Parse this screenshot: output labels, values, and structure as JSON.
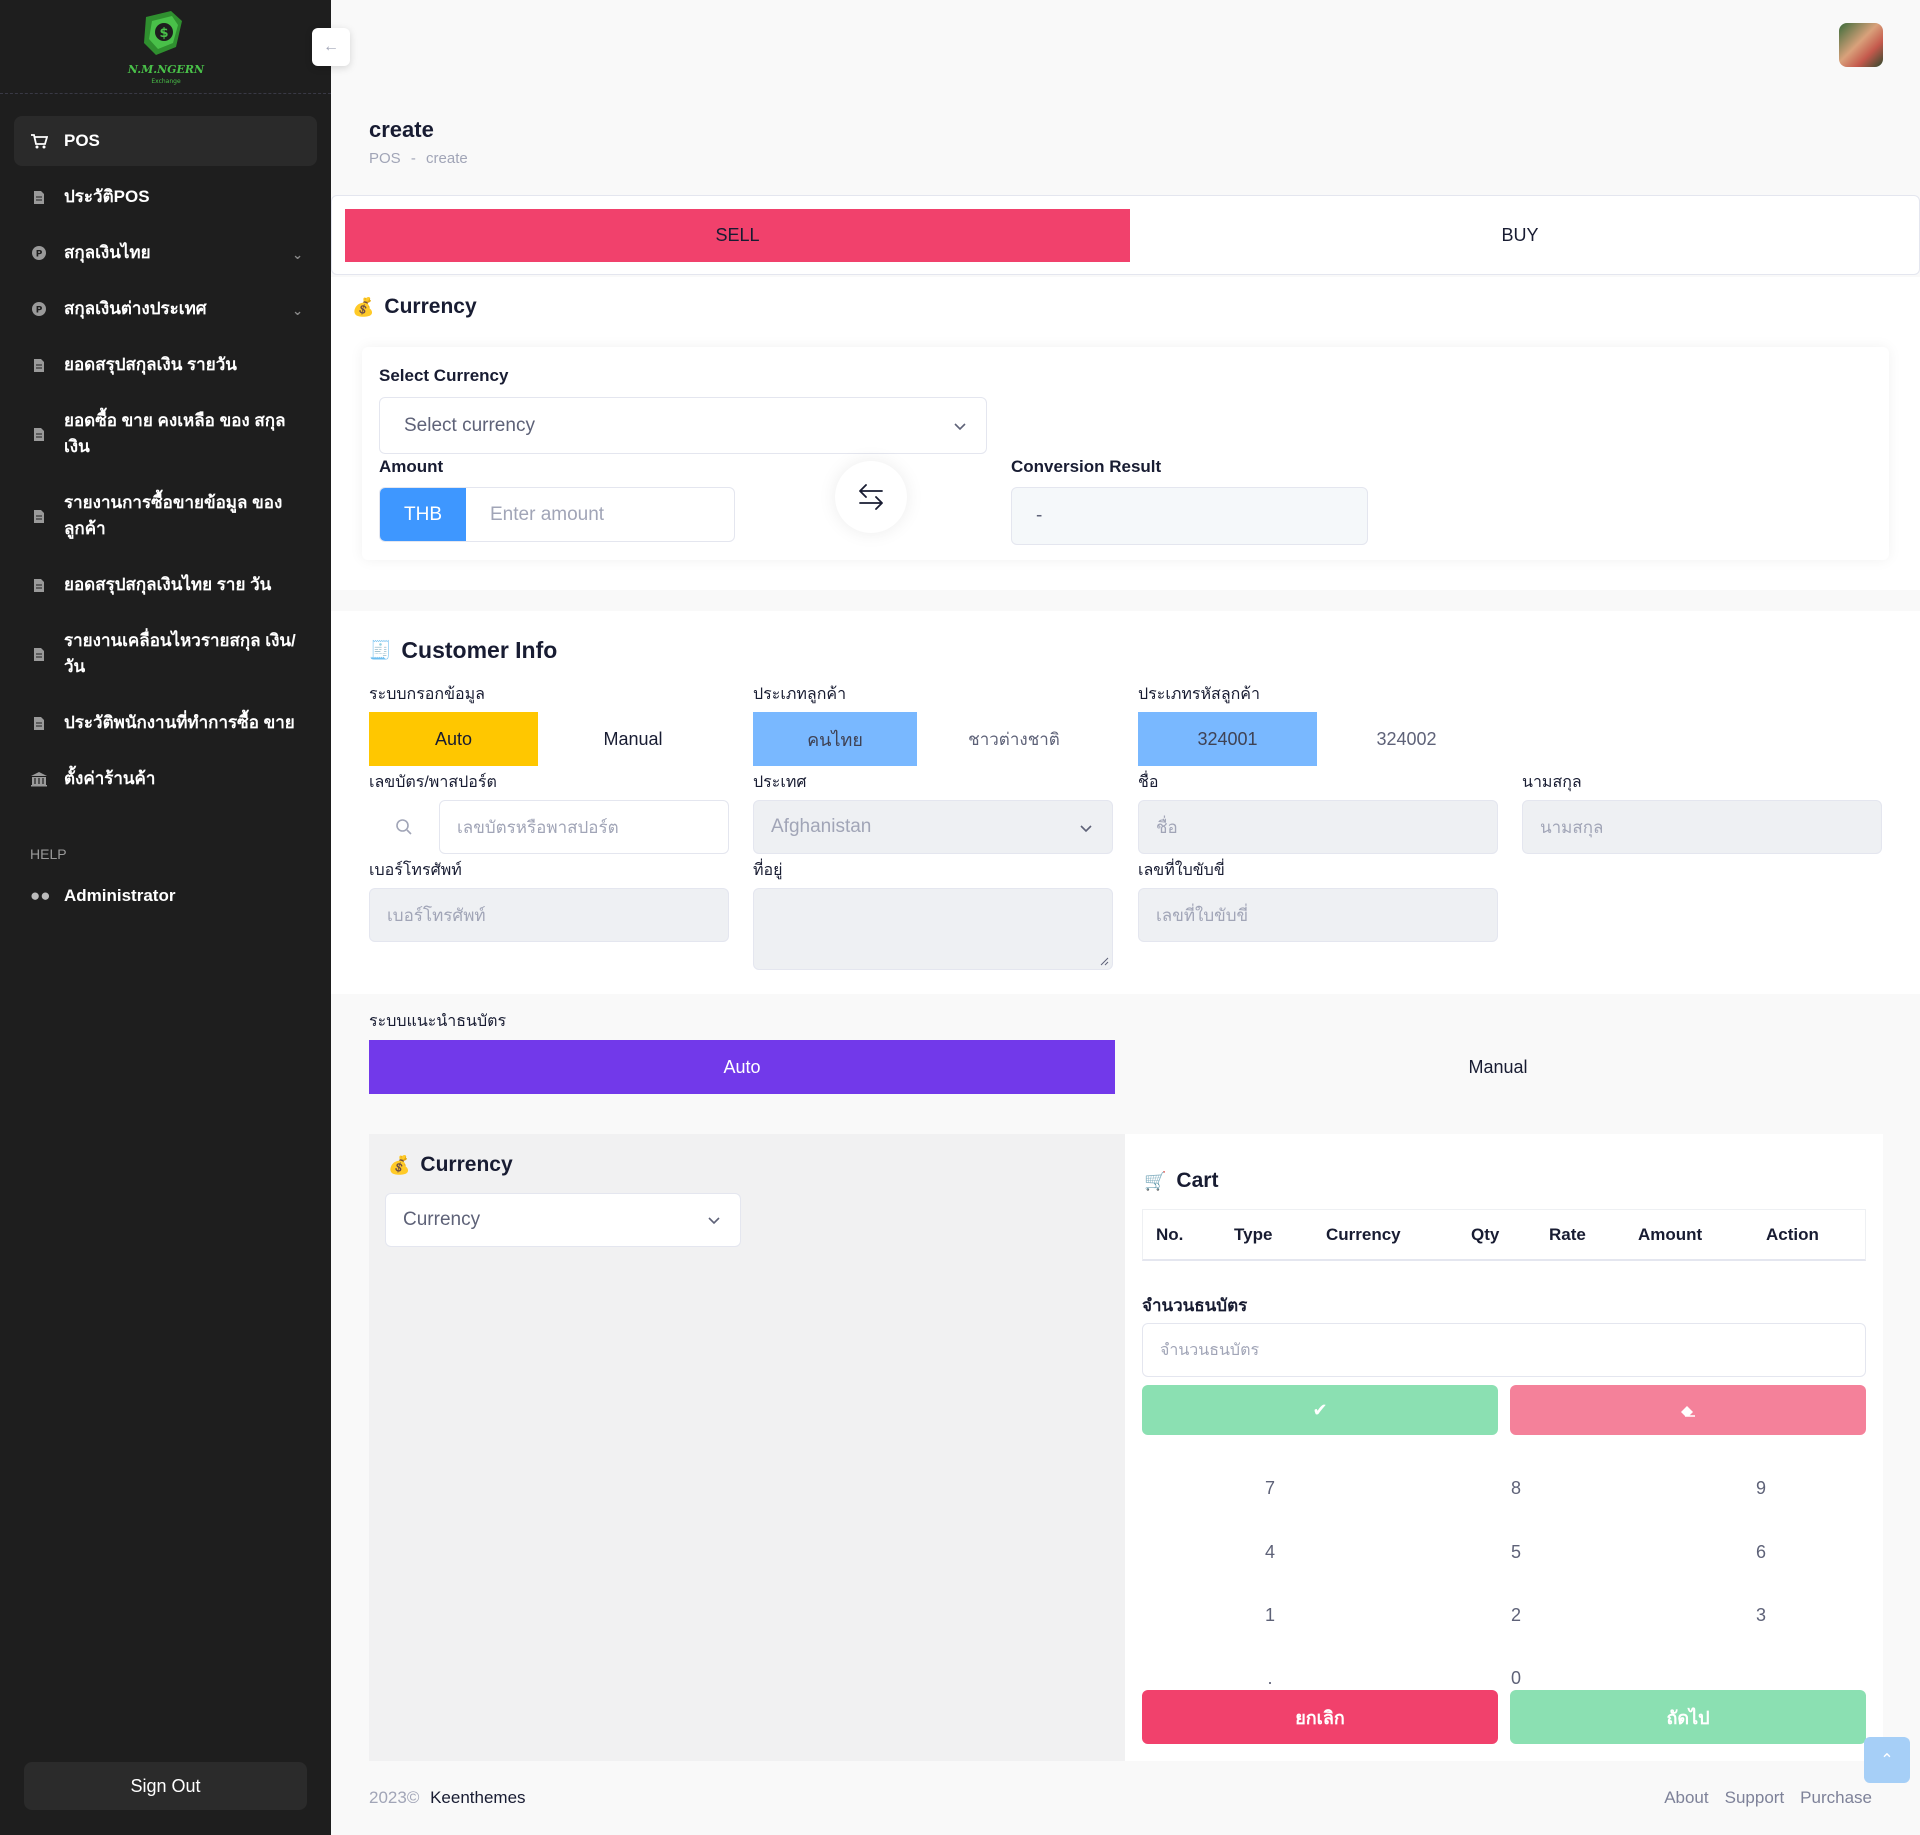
{
  "brand": {
    "logo_text": "N.M.NGERN",
    "logo_sub": "Exchange",
    "colors": {
      "sidebar": "#1e1e1e",
      "sell": "#f1416c",
      "primary": "#3e97ff",
      "warning": "#ffc700",
      "purple": "#7239ea",
      "success": "#8be0b2"
    }
  },
  "sidebar": {
    "items": [
      {
        "label": "POS",
        "icon": "cart-icon"
      },
      {
        "label": "ประวัติPOS",
        "icon": "document-icon"
      },
      {
        "label": "สกุลเงินไทย",
        "icon": "coin-icon"
      },
      {
        "label": "สกุลเงินต่างประเทศ",
        "icon": "coin-icon"
      },
      {
        "label": "ยอดสรุปสกุลเงิน รายวัน",
        "icon": "document-icon"
      },
      {
        "label": "ยอดซื้อ ขาย คงเหลือ ของ สกุลเงิน",
        "icon": "document-icon"
      },
      {
        "label": "รายงานการซื้อขายข้อมูล ของลูกค้า",
        "icon": "document-icon"
      },
      {
        "label": "ยอดสรุปสกุลเงินไทย ราย วัน",
        "icon": "document-icon"
      },
      {
        "label": "รายงานเคลื่อนไหวรายสกุล เงิน/วัน",
        "icon": "document-icon"
      },
      {
        "label": "ประวัติพนักงานที่ทำการซื้อ ขาย",
        "icon": "document-icon"
      },
      {
        "label": "ตั้งค่าร้านค้า",
        "icon": "bank-icon"
      }
    ],
    "help_label": "HELP",
    "admin_label": "Administrator",
    "signout_label": "Sign Out"
  },
  "header": {
    "title": "create",
    "breadcrumb_root": "POS",
    "breadcrumb_sep": "-",
    "breadcrumb_current": "create"
  },
  "tabs": {
    "sell": "SELL",
    "buy": "BUY"
  },
  "currency_section": {
    "title": "Currency",
    "select_label": "Select Currency",
    "select_placeholder": "Select currency",
    "amount_label": "Amount",
    "amount_prefix": "THB",
    "amount_placeholder": "Enter amount",
    "result_label": "Conversion Result",
    "result_value": "-"
  },
  "customer": {
    "title": "Customer Info",
    "entry_mode_label": "ระบบกรอกข้อมูล",
    "entry_auto": "Auto",
    "entry_manual": "Manual",
    "cust_type_label": "ประเภทลูกค้า",
    "cust_thai": "คนไทย",
    "cust_foreign": "ชาวต่างชาติ",
    "code_type_label": "ประเภทรหัสลูกค้า",
    "code_1": "324001",
    "code_2": "324002",
    "id_label": "เลขบัตร/พาสปอร์ต",
    "id_placeholder": "เลขบัตรหรือพาสปอร์ต",
    "country_label": "ประเทศ",
    "country_value": "Afghanistan",
    "first_name_label": "ชื่อ",
    "first_name_placeholder": "ชื่อ",
    "last_name_label": "นามสกุล",
    "last_name_placeholder": "นามสกุล",
    "phone_label": "เบอร์โทรศัพท์",
    "phone_placeholder": "เบอร์โทรศัพท์",
    "address_label": "ที่อยู่",
    "license_label": "เลขที่ใบขับขี่",
    "license_placeholder": "เลขที่ใบขับขี่"
  },
  "banknote": {
    "label": "ระบบแนะนำธนบัตร",
    "auto": "Auto",
    "manual": "Manual"
  },
  "currency_panel": {
    "title": "Currency",
    "select_placeholder": "Currency"
  },
  "cart": {
    "title": "Cart",
    "columns": [
      "No.",
      "Type",
      "Currency",
      "Qty",
      "Rate",
      "Amount",
      "Action"
    ],
    "banknote_count_label": "จำนวนธนบัตร",
    "banknote_count_placeholder": "จำนวนธนบัตร",
    "numpad": [
      "7",
      "8",
      "9",
      "4",
      "5",
      "6",
      "1",
      "2",
      "3",
      ".",
      "0"
    ],
    "cancel_label": "ยกเลิก",
    "next_label": "ถัดไป"
  },
  "footer": {
    "year": "2023©",
    "company": "Keenthemes",
    "links": [
      "About",
      "Support",
      "Purchase"
    ]
  }
}
